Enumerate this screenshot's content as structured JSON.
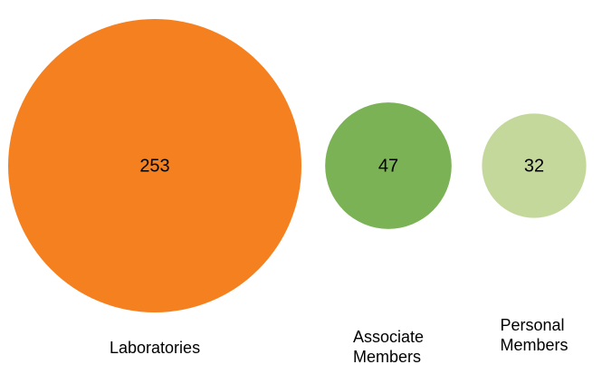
{
  "chart_data": {
    "type": "bubble",
    "categories": [
      "Laboratories",
      "Associate Members",
      "Personal Members"
    ],
    "values": [
      253,
      47,
      32
    ],
    "colors": [
      "#f5801f",
      "#7bb255",
      "#c4d89c"
    ]
  }
}
